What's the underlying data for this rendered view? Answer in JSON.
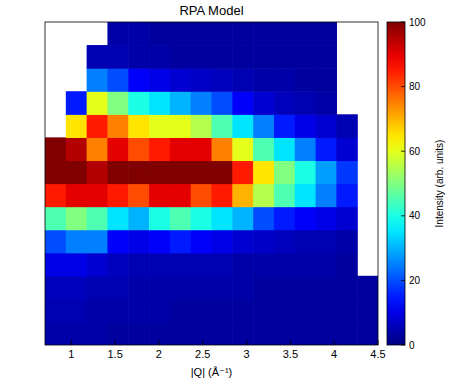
{
  "chart_data": {
    "type": "heatmap",
    "title": "RPA Model",
    "x_label": "|Q| (Å⁻¹)",
    "xlim": [
      0.7,
      4.5
    ],
    "xticks": [
      1,
      1.5,
      2,
      2.5,
      3,
      3.5,
      4,
      4.5
    ],
    "ylim": [
      0,
      35
    ],
    "tick_labels": "x",
    "x_bins": [
      0.7,
      0.9375,
      1.175,
      1.4125,
      1.65,
      1.8875,
      2.125,
      2.3625,
      2.6,
      2.8375,
      3.075,
      3.3125,
      3.55,
      3.7875,
      4.025,
      4.2625,
      4.5
    ],
    "y_bins": [
      0,
      2.5,
      5,
      7.5,
      10,
      12.5,
      15,
      17.5,
      20,
      22.5,
      25,
      27.5,
      30,
      32.5,
      35
    ],
    "values": [
      [
        4,
        4,
        4,
        3,
        3,
        3,
        3,
        3,
        3,
        3,
        3,
        3,
        3,
        3,
        3,
        3
      ],
      [
        5,
        5,
        4,
        4,
        4,
        4,
        3,
        3,
        3,
        3,
        3,
        3,
        3,
        3,
        3,
        3
      ],
      [
        6,
        6,
        5,
        5,
        4,
        4,
        4,
        4,
        4,
        4,
        3,
        3,
        3,
        3,
        3,
        3
      ],
      [
        10,
        10,
        8,
        6,
        5,
        5,
        5,
        5,
        5,
        4,
        4,
        4,
        4,
        4,
        3,
        null
      ],
      [
        20,
        25,
        25,
        12,
        10,
        12,
        15,
        12,
        10,
        8,
        7,
        6,
        5,
        5,
        4,
        null
      ],
      [
        45,
        50,
        45,
        35,
        30,
        40,
        45,
        40,
        35,
        30,
        20,
        15,
        12,
        10,
        8,
        null
      ],
      [
        85,
        90,
        90,
        85,
        80,
        90,
        90,
        80,
        85,
        70,
        55,
        45,
        35,
        25,
        15,
        null
      ],
      [
        100,
        100,
        95,
        100,
        100,
        100,
        100,
        100,
        100,
        85,
        65,
        50,
        40,
        28,
        18,
        null
      ],
      [
        100,
        95,
        75,
        90,
        80,
        85,
        90,
        90,
        75,
        60,
        45,
        35,
        25,
        15,
        8,
        null
      ],
      [
        null,
        65,
        85,
        75,
        65,
        60,
        60,
        55,
        45,
        35,
        25,
        15,
        10,
        8,
        5,
        null
      ],
      [
        null,
        15,
        60,
        50,
        40,
        35,
        30,
        25,
        20,
        12,
        8,
        6,
        5,
        4,
        null,
        null
      ],
      [
        null,
        null,
        25,
        20,
        12,
        10,
        8,
        7,
        6,
        5,
        4,
        4,
        3,
        3,
        null,
        null
      ],
      [
        null,
        null,
        5,
        5,
        4,
        4,
        3,
        3,
        3,
        3,
        3,
        3,
        3,
        3,
        null,
        null
      ],
      [
        null,
        null,
        null,
        4,
        4,
        3,
        3,
        3,
        3,
        3,
        3,
        3,
        3,
        3,
        null,
        null
      ]
    ],
    "colorbar": {
      "label": "Intensity (arb. units)",
      "range": [
        0,
        100
      ],
      "ticks": [
        0,
        20,
        40,
        60,
        80,
        100
      ]
    }
  }
}
